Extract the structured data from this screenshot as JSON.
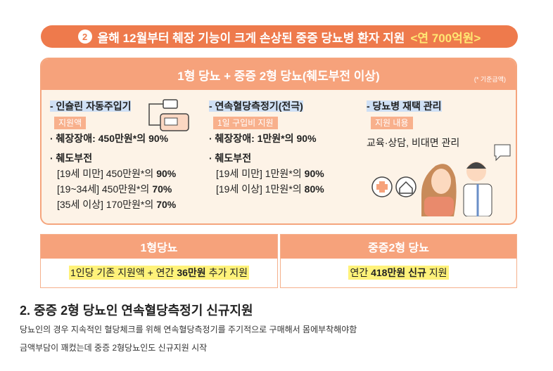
{
  "infographic": {
    "banner": {
      "number": "2",
      "title": "올해 12월부터 췌장 기능이 크게 손상된 중증 당뇨병 환자 지원",
      "highlight": "<연 700억원>"
    },
    "panel": {
      "header": "1형 당뇨 + 중증 2형 당뇨(췌도부전 이상)",
      "note": "(* 기준금액)",
      "columns": [
        {
          "title": "- 인슐린 자동주입기",
          "tag": "지원액",
          "lines": [
            {
              "text": "· 췌장장애: 450만원*의",
              "rate": "90%"
            },
            {
              "text": "· 췌도부전"
            },
            {
              "text": "[19세 미만] 450만원*의",
              "rate": "90%"
            },
            {
              "text": "[19~34세] 450만원*의",
              "rate": "70%"
            },
            {
              "text": "[35세 이상] 170만원*의",
              "rate": "70%"
            }
          ]
        },
        {
          "title": "- 연속혈당측정기(전극)",
          "tag": "1일 구입비 지원",
          "lines": [
            {
              "text": "· 췌장장애: 1만원*의",
              "rate": "90%"
            },
            {
              "text": "· 췌도부전"
            },
            {
              "text": "[19세 미만] 1만원*의",
              "rate": "90%"
            },
            {
              "text": "[19세 이상] 1만원*의",
              "rate": "80%"
            }
          ]
        },
        {
          "title": "- 당뇨병 재택 관리",
          "tag": "지원 내용",
          "lines": [
            {
              "text": "교육·상담, 비대면 관리"
            }
          ]
        }
      ]
    },
    "boxes": [
      {
        "header": "1형당뇨",
        "pre": "1인당 기존 지원액 + 연간",
        "strong": "36만원",
        "post": "추가 지원"
      },
      {
        "header": "중증2형 당뇨",
        "pre": "연간",
        "strong": "418만원 신규",
        "post": "지원"
      }
    ]
  },
  "article": {
    "heading": "2. 중증 2형 당뇨인 연속혈당측정기 신규지원",
    "paragraphs": [
      "당뇨인의 경우 지속적인 혈당체크를 위해 연속혈당측정기를 주기적으로 구매해서 몸에부착해야함",
      "금액부담이 꽤컸는데 중증 2형당뇨인도 신규지원 시작"
    ]
  }
}
